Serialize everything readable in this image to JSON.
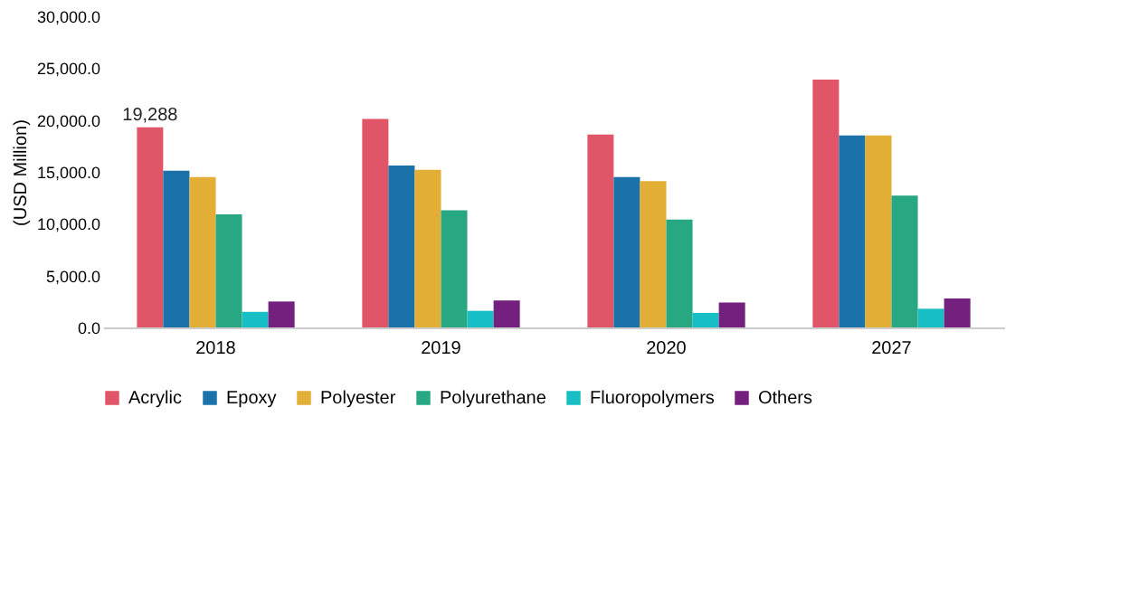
{
  "chart_data": {
    "type": "bar",
    "ylabel": "(USD Million)",
    "categories": [
      "2018",
      "2019",
      "2020",
      "2027"
    ],
    "series": [
      {
        "name": "Acrylic",
        "color": "#e05568",
        "values": [
          19288,
          20100,
          18600,
          23900
        ],
        "value_labels": [
          "19,288",
          null,
          null,
          null
        ]
      },
      {
        "name": "Epoxy",
        "color": "#1a72a8",
        "values": [
          15100,
          15600,
          14500,
          18500
        ]
      },
      {
        "name": "Polyester",
        "color": "#e3ae36",
        "values": [
          14500,
          15200,
          14100,
          18500
        ]
      },
      {
        "name": "Polyurethane",
        "color": "#27a882",
        "values": [
          10900,
          11300,
          10400,
          12700
        ]
      },
      {
        "name": "Fluoropolymers",
        "color": "#17bfc4",
        "values": [
          1500,
          1600,
          1400,
          1800
        ]
      },
      {
        "name": "Others",
        "color": "#73207e",
        "values": [
          2500,
          2600,
          2400,
          2800
        ]
      }
    ],
    "ylim": [
      0,
      30000
    ],
    "yticks": [
      {
        "value": 0,
        "label": "0.0"
      },
      {
        "value": 5000,
        "label": "5,000.0"
      },
      {
        "value": 10000,
        "label": "10,000.0"
      },
      {
        "value": 15000,
        "label": "15,000.0"
      },
      {
        "value": 20000,
        "label": "20,000.0"
      },
      {
        "value": 25000,
        "label": "25,000.0"
      },
      {
        "value": 30000,
        "label": "30,000.0"
      }
    ],
    "grid": false,
    "legend": "bottom"
  }
}
